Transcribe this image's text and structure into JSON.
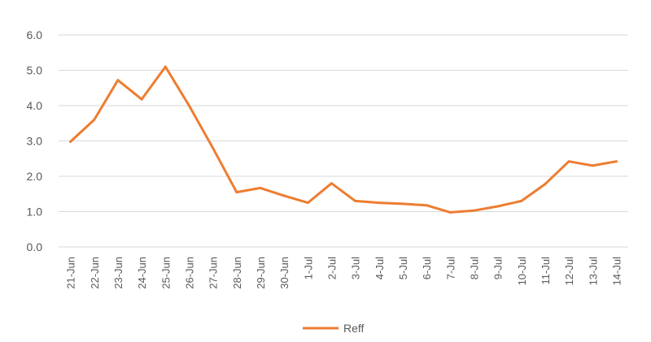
{
  "chart_data": {
    "type": "line",
    "title": "",
    "xlabel": "",
    "ylabel": "",
    "ylim": [
      0,
      6
    ],
    "yticks": [
      "0.0",
      "1.0",
      "2.0",
      "3.0",
      "4.0",
      "5.0",
      "6.0"
    ],
    "grid": "horizontal",
    "legend_position": "bottom",
    "categories": [
      "21-Jun",
      "22-Jun",
      "23-Jun",
      "24-Jun",
      "25-Jun",
      "26-Jun",
      "27-Jun",
      "28-Jun",
      "29-Jun",
      "30-Jun",
      "1-Jul",
      "2-Jul",
      "3-Jul",
      "4-Jul",
      "5-Jul",
      "6-Jul",
      "7-Jul",
      "8-Jul",
      "9-Jul",
      "10-Jul",
      "11-Jul",
      "12-Jul",
      "13-Jul",
      "14-Jul"
    ],
    "series": [
      {
        "name": "Reff",
        "color": "#ED7D31",
        "values": [
          2.98,
          3.6,
          4.72,
          4.18,
          5.1,
          4.0,
          2.8,
          1.55,
          1.67,
          1.45,
          1.25,
          1.8,
          1.3,
          1.25,
          1.22,
          1.18,
          0.98,
          1.03,
          1.15,
          1.3,
          1.78,
          2.42,
          2.3,
          2.42
        ]
      }
    ]
  }
}
